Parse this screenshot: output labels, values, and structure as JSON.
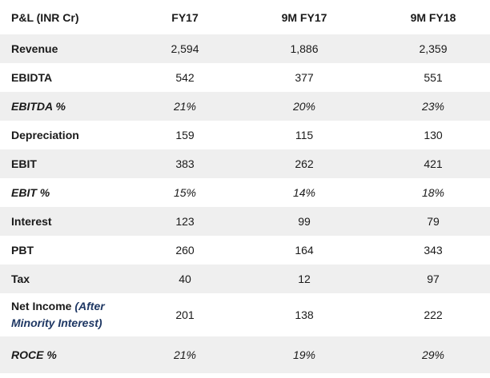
{
  "table": {
    "headers": [
      "P&L (INR Cr)",
      "FY17",
      "9M FY17",
      "9M FY18"
    ],
    "rows": [
      {
        "label": "Revenue",
        "values": [
          "2,594",
          "1,886",
          "2,359"
        ],
        "italic": false
      },
      {
        "label": "EBIDTA",
        "values": [
          "542",
          "377",
          "551"
        ],
        "italic": false
      },
      {
        "label": "EBITDA %",
        "values": [
          "21%",
          "20%",
          "23%"
        ],
        "italic": true
      },
      {
        "label": "Depreciation",
        "values": [
          "159",
          "115",
          "130"
        ],
        "italic": false
      },
      {
        "label": "EBIT",
        "values": [
          "383",
          "262",
          "421"
        ],
        "italic": false
      },
      {
        "label": "EBIT %",
        "values": [
          "15%",
          "14%",
          "18%"
        ],
        "italic": true
      },
      {
        "label": "Interest",
        "values": [
          "123",
          "99",
          "79"
        ],
        "italic": false
      },
      {
        "label": "PBT",
        "values": [
          "260",
          "164",
          "343"
        ],
        "italic": false
      },
      {
        "label": "Tax",
        "values": [
          "40",
          "12",
          "97"
        ],
        "italic": false
      },
      {
        "label": "Net Income",
        "label_sub_a": "(After",
        "label_sub_b": "Minority Interest)",
        "values": [
          "201",
          "138",
          "222"
        ],
        "italic": false
      },
      {
        "label": "ROCE %",
        "values": [
          "21%",
          "19%",
          "29%"
        ],
        "italic": true
      }
    ]
  }
}
